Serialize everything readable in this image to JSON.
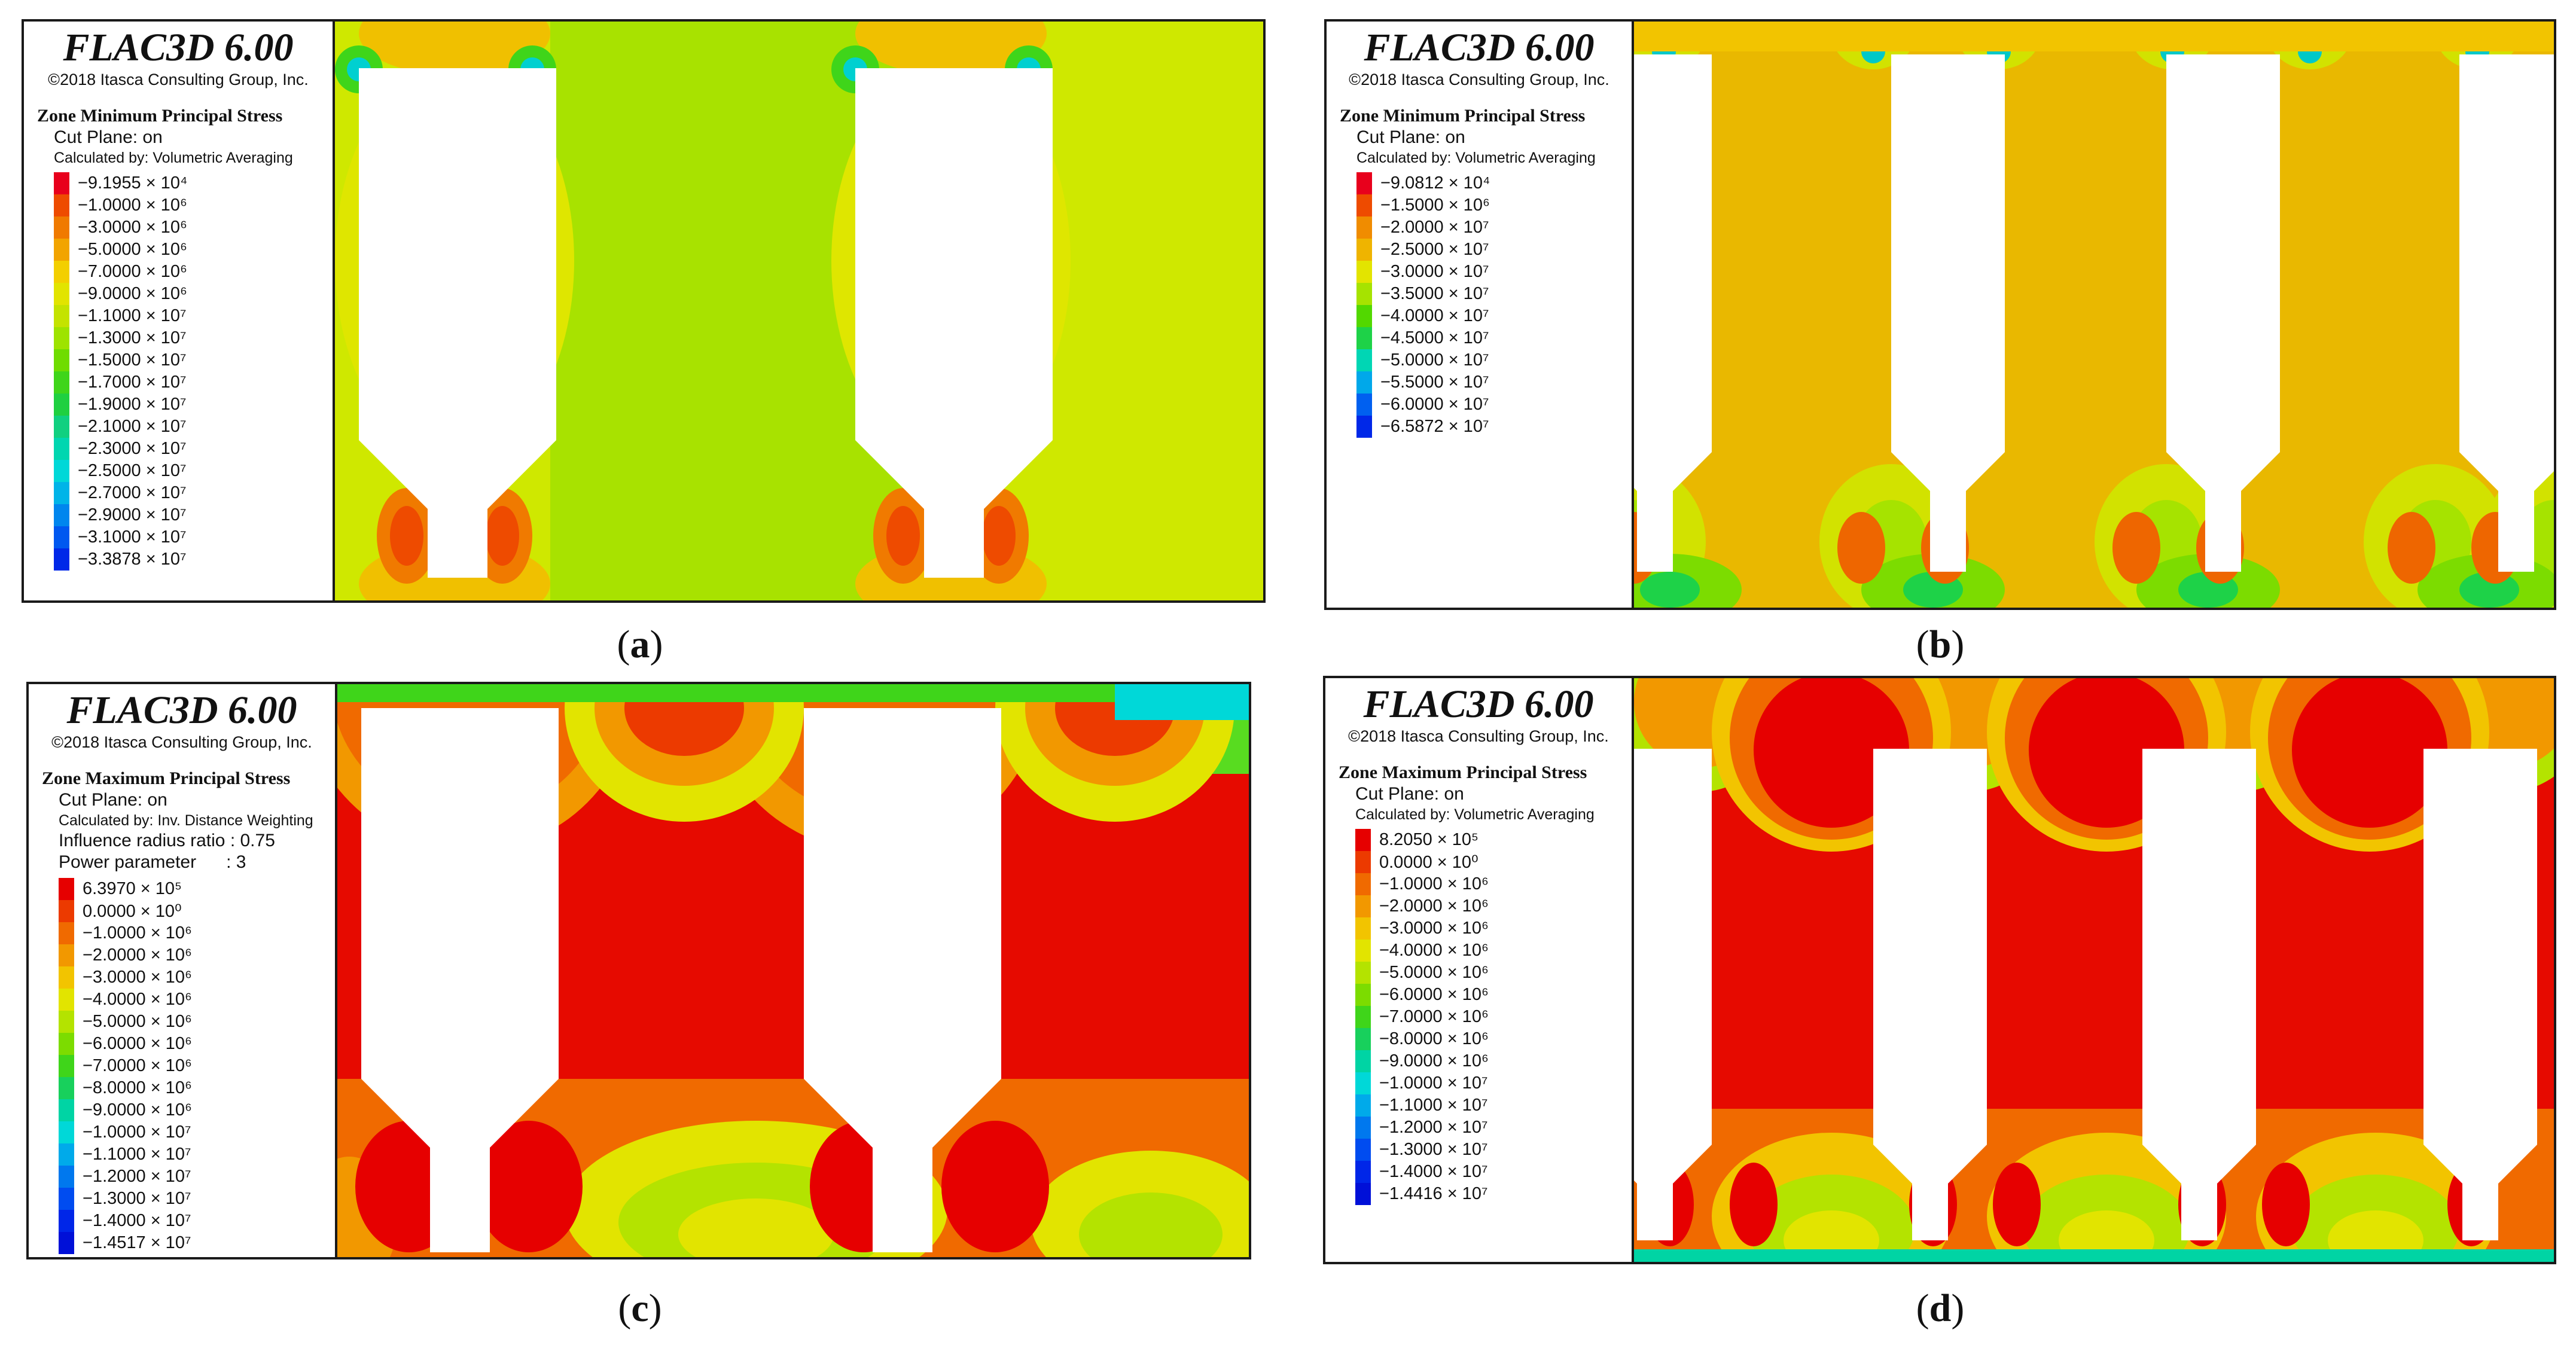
{
  "software": {
    "title": "FLAC3D 6.00",
    "copyright": "©2018 Itasca Consulting Group, Inc."
  },
  "panels": [
    {
      "label": "a",
      "quantity": "Zone Minimum Principal Stress",
      "cut_plane": "Cut Plane: on",
      "calculated_by": "Calculated by: Volumetric Averaging",
      "extra_lines": [],
      "background": "#c9e600",
      "contour_levels": [
        {
          "label": "−9.1955 × 10⁴",
          "color": "#e8001c"
        },
        {
          "label": "−1.0000 × 10⁶",
          "color": "#ee4b00"
        },
        {
          "label": "−3.0000 × 10⁶",
          "color": "#f07a00"
        },
        {
          "label": "−5.0000 × 10⁶",
          "color": "#f2a400"
        },
        {
          "label": "−7.0000 × 10⁶",
          "color": "#f3cf00"
        },
        {
          "label": "−9.0000 × 10⁶",
          "color": "#e2e400"
        },
        {
          "label": "−1.1000 × 10⁷",
          "color": "#c4e300"
        },
        {
          "label": "−1.3000 × 10⁷",
          "color": "#9ee300"
        },
        {
          "label": "−1.5000 × 10⁷",
          "color": "#6fdc00"
        },
        {
          "label": "−1.7000 × 10⁷",
          "color": "#3fd51a"
        },
        {
          "label": "−1.9000 × 10⁷",
          "color": "#1fd040"
        },
        {
          "label": "−2.1000 × 10⁷",
          "color": "#10d080"
        },
        {
          "label": "−2.3000 × 10⁷",
          "color": "#00d6b0"
        },
        {
          "label": "−2.5000 × 10⁷",
          "color": "#00d8d8"
        },
        {
          "label": "−2.7000 × 10⁷",
          "color": "#00b4e8"
        },
        {
          "label": "−2.9000 × 10⁷",
          "color": "#0086ee"
        },
        {
          "label": "−3.1000 × 10⁷",
          "color": "#0058f0"
        },
        {
          "label": "−3.3878 × 10⁷",
          "color": "#0028e8"
        }
      ]
    },
    {
      "label": "b",
      "quantity": "Zone Minimum Principal Stress",
      "cut_plane": "Cut Plane: on",
      "calculated_by": "Calculated by: Volumetric Averaging",
      "extra_lines": [],
      "background": "#e9b800",
      "contour_levels": [
        {
          "label": "−9.0812 × 10⁴",
          "color": "#e8001c"
        },
        {
          "label": "−1.5000 × 10⁶",
          "color": "#ee4b00"
        },
        {
          "label": "−2.0000 × 10⁷",
          "color": "#f08c00"
        },
        {
          "label": "−2.5000 × 10⁷",
          "color": "#efb400"
        },
        {
          "label": "−3.0000 × 10⁷",
          "color": "#e3e400"
        },
        {
          "label": "−3.5000 × 10⁷",
          "color": "#a6e300"
        },
        {
          "label": "−4.0000 × 10⁷",
          "color": "#52d800"
        },
        {
          "label": "−4.5000 × 10⁷",
          "color": "#1ed248"
        },
        {
          "label": "−5.0000 × 10⁷",
          "color": "#00d6b4"
        },
        {
          "label": "−5.5000 × 10⁷",
          "color": "#00a8ea"
        },
        {
          "label": "−6.0000 × 10⁷",
          "color": "#0060f0"
        },
        {
          "label": "−6.5872 × 10⁷",
          "color": "#0028e8"
        }
      ]
    },
    {
      "label": "c",
      "quantity": "Zone Maximum Principal Stress",
      "cut_plane": "Cut Plane: on",
      "calculated_by": "Calculated by: Inv. Distance Weighting",
      "extra_lines": [
        "Influence radius ratio : 0.75",
        "Power parameter      : 3"
      ],
      "background": "#e60a00",
      "contour_levels": [
        {
          "label": "6.3970 × 10⁵",
          "color": "#e60000"
        },
        {
          "label": "0.0000 × 10⁰",
          "color": "#ec3a00"
        },
        {
          "label": "−1.0000 × 10⁶",
          "color": "#f06a00"
        },
        {
          "label": "−2.0000 × 10⁶",
          "color": "#f29800"
        },
        {
          "label": "−3.0000 × 10⁶",
          "color": "#f2c400"
        },
        {
          "label": "−4.0000 × 10⁶",
          "color": "#e2e400"
        },
        {
          "label": "−5.0000 × 10⁶",
          "color": "#b4e300"
        },
        {
          "label": "−6.0000 × 10⁶",
          "color": "#7cdc00"
        },
        {
          "label": "−7.0000 × 10⁶",
          "color": "#3fd51a"
        },
        {
          "label": "−8.0000 × 10⁶",
          "color": "#18d05c"
        },
        {
          "label": "−9.0000 × 10⁶",
          "color": "#00d4a4"
        },
        {
          "label": "−1.0000 × 10⁷",
          "color": "#00d8d8"
        },
        {
          "label": "−1.1000 × 10⁷",
          "color": "#00aaea"
        },
        {
          "label": "−1.2000 × 10⁷",
          "color": "#0078ee"
        },
        {
          "label": "−1.3000 × 10⁷",
          "color": "#004cf0"
        },
        {
          "label": "−1.4000 × 10⁷",
          "color": "#0026e8"
        },
        {
          "label": "−1.4517 × 10⁷",
          "color": "#0010d8"
        }
      ]
    },
    {
      "label": "d",
      "quantity": "Zone Maximum Principal Stress",
      "cut_plane": "Cut Plane: on",
      "calculated_by": "Calculated by: Volumetric Averaging",
      "extra_lines": [],
      "background": "#e60a00",
      "contour_levels": [
        {
          "label": "8.2050 × 10⁵",
          "color": "#e60000"
        },
        {
          "label": "0.0000 × 10⁰",
          "color": "#ec3a00"
        },
        {
          "label": "−1.0000 × 10⁶",
          "color": "#f06a00"
        },
        {
          "label": "−2.0000 × 10⁶",
          "color": "#f29800"
        },
        {
          "label": "−3.0000 × 10⁶",
          "color": "#f2c400"
        },
        {
          "label": "−4.0000 × 10⁶",
          "color": "#e2e400"
        },
        {
          "label": "−5.0000 × 10⁶",
          "color": "#b4e300"
        },
        {
          "label": "−6.0000 × 10⁶",
          "color": "#7cdc00"
        },
        {
          "label": "−7.0000 × 10⁶",
          "color": "#3fd51a"
        },
        {
          "label": "−8.0000 × 10⁶",
          "color": "#18d05c"
        },
        {
          "label": "−9.0000 × 10⁶",
          "color": "#00d4a4"
        },
        {
          "label": "−1.0000 × 10⁷",
          "color": "#00d8d8"
        },
        {
          "label": "−1.1000 × 10⁷",
          "color": "#00aaea"
        },
        {
          "label": "−1.2000 × 10⁷",
          "color": "#0078ee"
        },
        {
          "label": "−1.3000 × 10⁷",
          "color": "#004cf0"
        },
        {
          "label": "−1.4000 × 10⁷",
          "color": "#0026e8"
        },
        {
          "label": "−1.4416 × 10⁷",
          "color": "#0010d8"
        }
      ]
    }
  ]
}
